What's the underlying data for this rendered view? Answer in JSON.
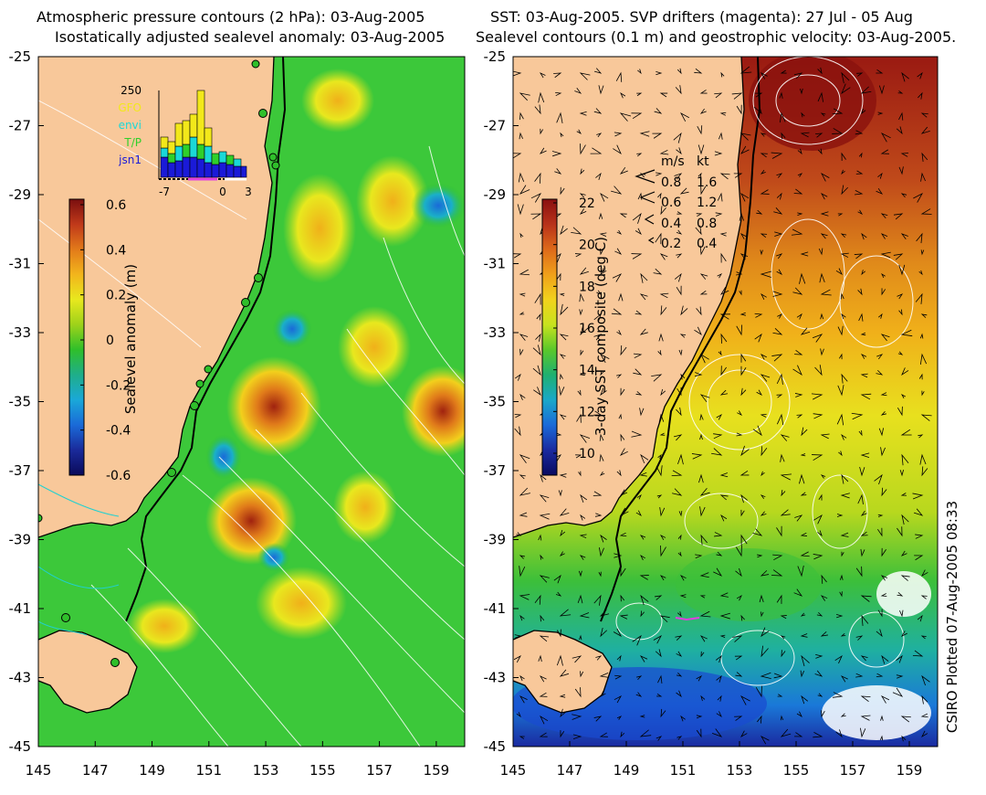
{
  "left_panel": {
    "title_line1": "Atmospheric pressure contours (2 hPa): 03-Aug-2005",
    "title_line2": "Isostatically adjusted sealevel anomaly: 03-Aug-2005",
    "colorbar_label": "Sealevel anomaly (m)",
    "colorbar_ticks": [
      "0.6",
      "0.4",
      "0.2",
      "0",
      "-0.2",
      "-0.4",
      "-0.6"
    ],
    "colorbar_colors": [
      "#7a0f0f",
      "#c0391a",
      "#e27a1a",
      "#f2b51c",
      "#e8e81e",
      "#9ed21a",
      "#2fbf2a",
      "#1fae8a",
      "#1aa8d8",
      "#1a6ad8",
      "#1a2a9a",
      "#0a0a5a"
    ],
    "inset": {
      "max_label": "250",
      "legend": [
        {
          "label": "GFO",
          "color": "#f2e81a"
        },
        {
          "label": "envi",
          "color": "#1ad8d8"
        },
        {
          "label": "T/P",
          "color": "#2fd02a"
        },
        {
          "label": "jsn1",
          "color": "#1a1ad8"
        }
      ],
      "x_ticks": [
        "-7",
        "0",
        "3"
      ]
    }
  },
  "right_panel": {
    "title_line1": "SST: 03-Aug-2005. SVP drifters (magenta): 27 Jul - 05 Aug",
    "title_line2": "Sealevel contours (0.1 m) and geostrophic velocity: 03-Aug-2005.",
    "colorbar_label": "3-day SST composite (deg C)",
    "colorbar_ticks": [
      "22",
      "20",
      "18",
      "16",
      "14",
      "12",
      "10"
    ],
    "colorbar_colors": [
      "#8a0f0f",
      "#b8321a",
      "#dd6a1a",
      "#f0a01a",
      "#f2d21c",
      "#c8e21e",
      "#5ac82a",
      "#1fb070",
      "#1aa8c8",
      "#1a6ad8",
      "#1a2aa0",
      "#0a0a60"
    ],
    "velocity_legend": {
      "header_ms": "m/s",
      "header_kt": "kt",
      "rows": [
        {
          "ms": "0.8",
          "kt": "1.6"
        },
        {
          "ms": "0.6",
          "kt": "1.2"
        },
        {
          "ms": "0.4",
          "kt": "0.8"
        },
        {
          "ms": "0.2",
          "kt": "0.4"
        }
      ]
    }
  },
  "y_axis_ticks": [
    "-25",
    "-27",
    "-29",
    "-31",
    "-33",
    "-35",
    "-37",
    "-39",
    "-41",
    "-43",
    "-45"
  ],
  "x_axis_ticks": [
    "145",
    "147",
    "149",
    "151",
    "153",
    "155",
    "157",
    "159"
  ],
  "plot_stamp": "CSIRO Plotted 07-Aug-2005 08:33",
  "colors": {
    "land": "#f8c89a",
    "ocean_base": "#3cc83a",
    "coastline": "#000000",
    "contour": "#ffffff",
    "shelf_contour": "#20d0d0",
    "tide_gauge": "#2fbf2a"
  }
}
